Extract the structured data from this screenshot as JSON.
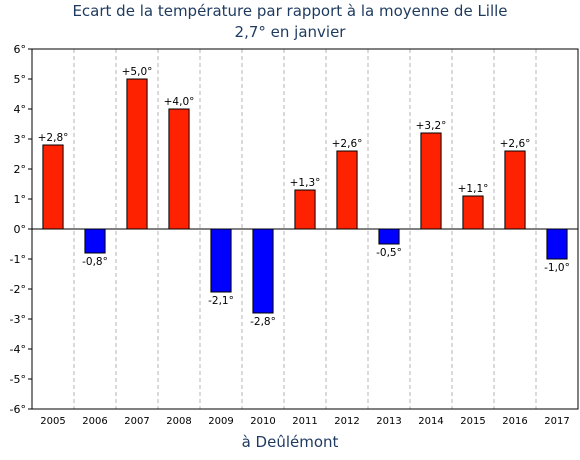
{
  "chart_data": {
    "type": "bar",
    "title": "Ecart de la température par rapport à la moyenne de Lille",
    "subtitle": "2,7° en janvier",
    "xlabel": "à Deûlémont",
    "ylabel": "",
    "categories": [
      "2005",
      "2006",
      "2007",
      "2008",
      "2009",
      "2010",
      "2011",
      "2012",
      "2013",
      "2014",
      "2015",
      "2016",
      "2017"
    ],
    "values": [
      2.8,
      -0.8,
      5.0,
      4.0,
      -2.1,
      -2.8,
      1.3,
      2.6,
      -0.5,
      3.2,
      1.1,
      2.6,
      -1.0
    ],
    "data_labels": [
      "+2,8°",
      "-0,8°",
      "+5,0°",
      "+4,0°",
      "-2,1°",
      "-2,8°",
      "+1,3°",
      "+2,6°",
      "-0,5°",
      "+3,2°",
      "+1,1°",
      "+2,6°",
      "-1,0°"
    ],
    "ylim": [
      -6,
      6
    ],
    "yticks": [
      6,
      5,
      4,
      3,
      2,
      1,
      0,
      -1,
      -2,
      -3,
      -4,
      -5,
      -6
    ],
    "ytick_labels": [
      "6°",
      "5°",
      "4°",
      "3°",
      "2°",
      "1°",
      "0°",
      "-1°",
      "-2°",
      "-3°",
      "-4°",
      "-5°",
      "-6°"
    ],
    "grid": "vertical dashed",
    "colors": {
      "positive": "#ff2200",
      "negative": "#0000ff",
      "title": "#1e3a5f",
      "grid": "#b4b4b4"
    }
  }
}
